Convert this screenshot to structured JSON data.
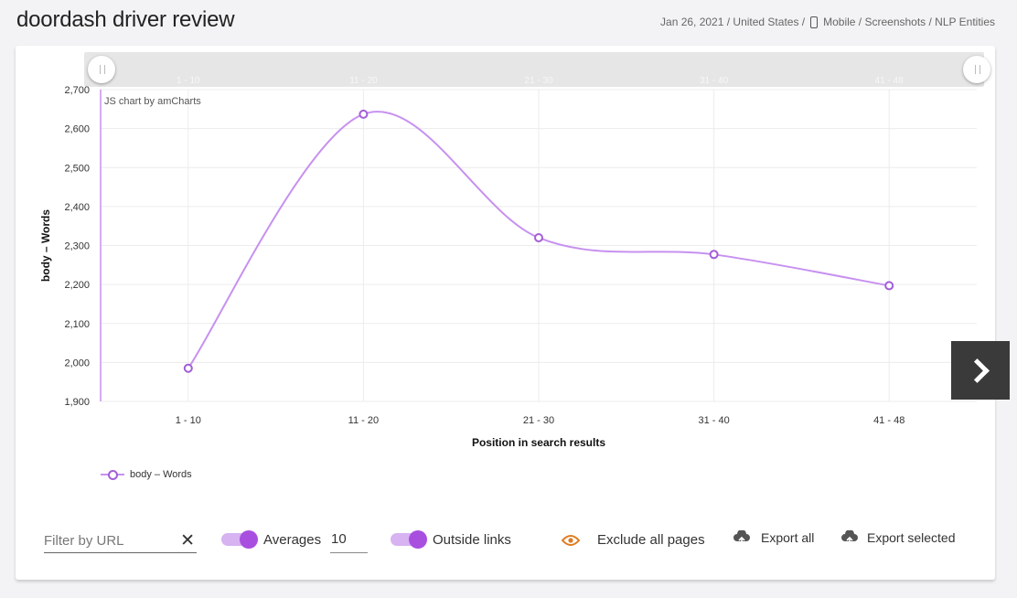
{
  "page": {
    "title": "doordash driver review",
    "breadcrumb": {
      "date_region": "Jan 26, 2021 / United States /",
      "rest": "Mobile / Screenshots / NLP Entities"
    }
  },
  "chart_data": {
    "type": "line",
    "categories": [
      "1 - 10",
      "11 - 20",
      "21 - 30",
      "31 - 40",
      "41 - 48"
    ],
    "series": [
      {
        "name": "body – Words",
        "values": [
          1985,
          2637,
          2320,
          2277,
          2197
        ],
        "color": "#c791f0",
        "marker_color": "#a35ed8"
      }
    ],
    "xlabel": "Position in search results",
    "ylabel": "body – Words",
    "ylim": [
      1900,
      2700
    ],
    "yticks": [
      1900,
      2000,
      2100,
      2200,
      2300,
      2400,
      2500,
      2600,
      2700
    ],
    "ytick_labels": [
      "1,900",
      "2,000",
      "2,100",
      "2,200",
      "2,300",
      "2,400",
      "2,500",
      "2,600",
      "2,700"
    ],
    "scrollbar_labels": [
      "1 - 10",
      "11 - 20",
      "21 - 30",
      "31 - 40",
      "41 - 48"
    ],
    "credit": "JS chart by amCharts",
    "legend_position": "bottom-left",
    "grid": true
  },
  "toolbar": {
    "filter_placeholder": "Filter by URL",
    "clear_symbol": "✕",
    "averages_label": "Averages",
    "averages_value": "10",
    "outside_links_label": "Outside links",
    "exclude_label": "Exclude all pages",
    "export_all_label": "Export all",
    "export_selected_label": "Export selected",
    "accent_color": "#a94fe0",
    "eye_color": "#e07a1e"
  }
}
